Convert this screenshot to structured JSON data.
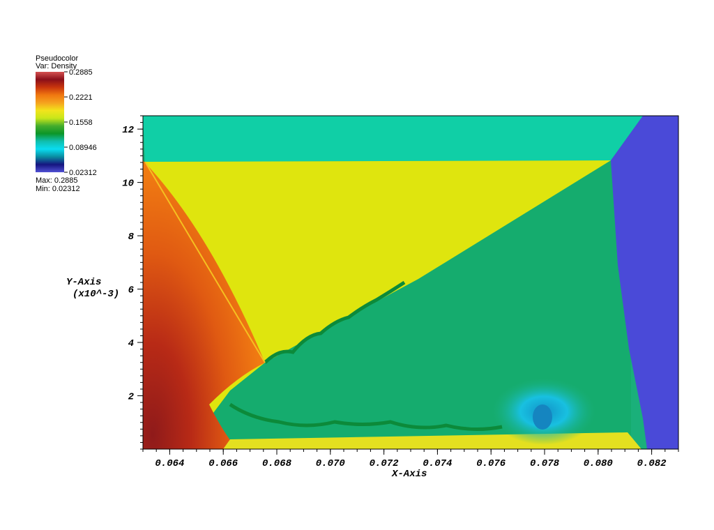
{
  "legend": {
    "title": "Pseudocolor",
    "var_label": "Var: Density",
    "max_label": "Max: 0.2885",
    "min_label": "Min: 0.02312",
    "ticks": [
      "0.2885",
      "0.2221",
      "0.1558",
      "0.08946",
      "0.02312"
    ],
    "colors": [
      "#d45050",
      "#8a0f1a",
      "#c8350d",
      "#f07810",
      "#f5a21e",
      "#f2e41c",
      "#c8e61a",
      "#46ad2d",
      "#0c9628",
      "#10bfae",
      "#0adcf0",
      "#0a8ca0",
      "#151580",
      "#5050d4"
    ]
  },
  "axes": {
    "x_title": "X-Axis",
    "y_title": "Y-Axis",
    "y_title_scale": "(x10^-3)"
  },
  "chart_data": {
    "type": "heatmap",
    "title": "",
    "variable": "Density",
    "min": 0.02312,
    "max": 0.2885,
    "xlabel": "X-Axis",
    "ylabel": "Y-Axis (x10^-3)",
    "xlim": [
      0.063,
      0.083
    ],
    "ylim": [
      0.0,
      12.5
    ],
    "x_ticks": [
      "0.064",
      "0.066",
      "0.068",
      "0.070",
      "0.072",
      "0.074",
      "0.076",
      "0.078",
      "0.080",
      "0.082"
    ],
    "x_tick_values": [
      0.064,
      0.066,
      0.068,
      0.07,
      0.072,
      0.074,
      0.076,
      0.078,
      0.08,
      0.082
    ],
    "y_ticks": [
      "2",
      "4",
      "6",
      "8",
      "10",
      "12"
    ],
    "y_tick_values": [
      2,
      4,
      6,
      8,
      10,
      12
    ],
    "grid": false,
    "regions": [
      {
        "name": "upstream-region",
        "color": "#4a4ad8",
        "density_approx": 0.03
      },
      {
        "name": "upper-band",
        "color": "#10cfa6",
        "density_approx": 0.1
      },
      {
        "name": "triangle-region",
        "color": "#dfe50e",
        "density_approx": 0.17
      },
      {
        "name": "shear-region",
        "color": "#1ab07a",
        "density_approx": 0.12
      },
      {
        "name": "high-density-region",
        "color": "#c82c12",
        "density_approx": 0.26
      },
      {
        "name": "vortex-core",
        "color": "#1cc8e0",
        "density_approx": 0.08
      }
    ]
  }
}
